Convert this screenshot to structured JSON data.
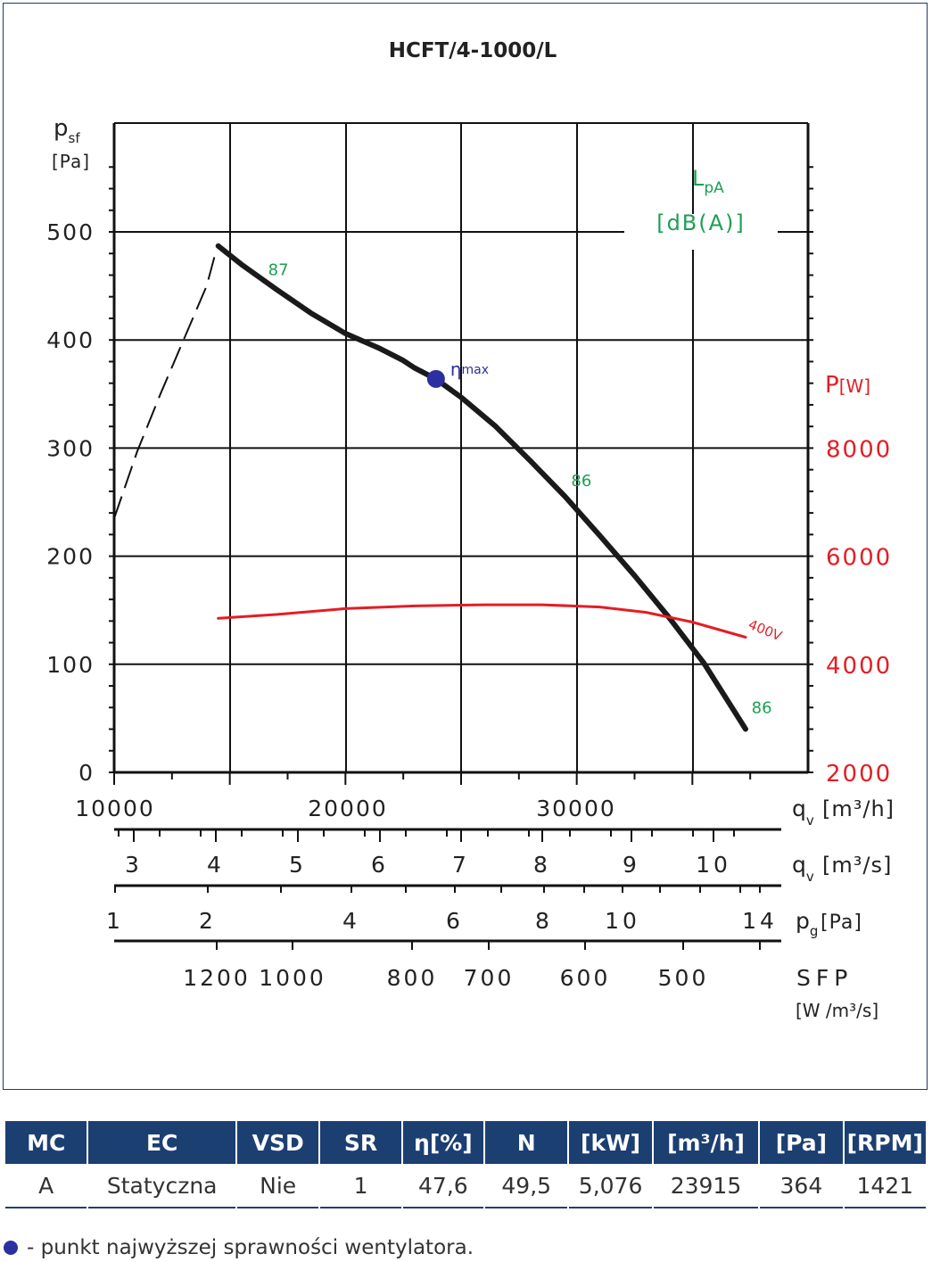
{
  "chart_data": {
    "type": "line",
    "title": "HCFT/4-1000/L",
    "ylabel": "p",
    "ylabel_sub": "sf",
    "yunit": "[Pa]",
    "xunit_main": "[m³/h]",
    "ylim": [
      0,
      500
    ],
    "y2lim": [
      2000,
      8000
    ],
    "xlim": [
      10000,
      40000
    ],
    "y_ticks": [
      "0",
      "100",
      "200",
      "300",
      "400",
      "500"
    ],
    "y2_label": "P",
    "y2_unit": "[W]",
    "y2_ticks": [
      "2000",
      "4000",
      "6000",
      "8000"
    ],
    "lpa_label": "L",
    "lpa_sub": "pA",
    "lpa_unit": "[dB(A)]",
    "x_ticks": [
      "10000",
      "20000",
      "30000"
    ],
    "x_label_sym": "q",
    "x_label_sub": "v",
    "pressure_curve": {
      "x": [
        14500,
        15500,
        17000,
        18500,
        20000,
        21500,
        22500,
        23000,
        23900,
        25000,
        26500,
        28000,
        29500,
        31000,
        32500,
        34000,
        35500,
        37300
      ],
      "y": [
        487,
        470,
        447,
        425,
        406,
        392,
        381,
        374,
        364,
        347,
        320,
        288,
        255,
        219,
        182,
        143,
        101,
        40
      ]
    },
    "stall_curve": {
      "x": [
        10000,
        11000,
        12000,
        13000,
        14000,
        14400
      ],
      "y": [
        235,
        297,
        350,
        400,
        450,
        482
      ]
    },
    "power_curve": {
      "name": "400V",
      "x": [
        14500,
        17000,
        20000,
        23000,
        26000,
        28500,
        31000,
        33000,
        35000,
        37300
      ],
      "y": [
        4850,
        4920,
        5030,
        5080,
        5100,
        5100,
        5060,
        4960,
        4780,
        4500
      ]
    },
    "eta_max_point": {
      "x": 23915,
      "y": 364,
      "label": "η",
      "label_sub": "max"
    },
    "sound_labels": [
      {
        "text": "87",
        "x": 17100,
        "y": 465
      },
      {
        "text": "86",
        "x": 30200,
        "y": 270
      },
      {
        "text": "86",
        "x": 38000,
        "y": 60
      }
    ],
    "axis_qs": {
      "label": "q",
      "sub": "v",
      "unit": "[m³/s]",
      "ticks": [
        "3",
        "4",
        "5",
        "6",
        "7",
        "8",
        "9",
        "10"
      ]
    },
    "axis_pg": {
      "label": "p",
      "sub": "g",
      "unit": "[Pa]",
      "ticks": [
        "1",
        "2",
        "4",
        "6",
        "8",
        "10",
        "14"
      ]
    },
    "axis_sfp": {
      "label": "SFP",
      "unit": "[W /m³/s]",
      "ticks": [
        "1200",
        "1000",
        "800",
        "700",
        "600",
        "500"
      ]
    },
    "grid": true
  },
  "table": {
    "headers": [
      "MC",
      "EC",
      "VSD",
      "SR",
      "η[%]",
      "N",
      "[kW]",
      "[m³/h]",
      "[Pa]",
      "[RPM]"
    ],
    "row": [
      "A",
      "Statyczna",
      "Nie",
      "1",
      "47,6",
      "49,5",
      "5,076",
      "23915",
      "364",
      "1421"
    ]
  },
  "legend_note": "- punkt najwyższej sprawności wentylatora.",
  "colors": {
    "pressure": "#1a1a1a",
    "power": "#e31e24",
    "sound": "#1d9e55",
    "eta_point": "#2b2fa0",
    "table_header": "#1c3f72",
    "frame": "#1e3b6a"
  }
}
